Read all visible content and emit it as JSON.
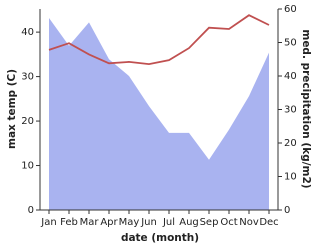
{
  "chart_data": {
    "type": "area-line",
    "x_label": "date (month)",
    "y_label": "max temp (C)",
    "y2_label": "med. precipitation (kg/m2)",
    "categories": [
      "Jan",
      "Feb",
      "Mar",
      "Apr",
      "May",
      "Jun",
      "Jul",
      "Aug",
      "Sep",
      "Oct",
      "Nov",
      "Dec"
    ],
    "series": [
      {
        "name": "med. precipitation (kg/m2)",
        "type": "area",
        "axis": "y2",
        "color": "#a9b3f0",
        "values": [
          57.3,
          49,
          56,
          45,
          40,
          31,
          23,
          23,
          15,
          24,
          34,
          47
        ]
      },
      {
        "name": "max temp (C)",
        "type": "line",
        "color": "#c05050",
        "values": [
          36,
          37.5,
          35,
          33,
          33.3,
          32.8,
          33.7,
          36.4,
          41,
          40.7,
          43.8,
          41.6
        ]
      }
    ],
    "ylim": [
      0,
      45.2
    ],
    "yticks": [
      0,
      10,
      20,
      30,
      40
    ],
    "y2lim": [
      0,
      60
    ],
    "y2ticks": [
      0,
      10,
      20,
      30,
      40,
      50,
      60
    ]
  }
}
